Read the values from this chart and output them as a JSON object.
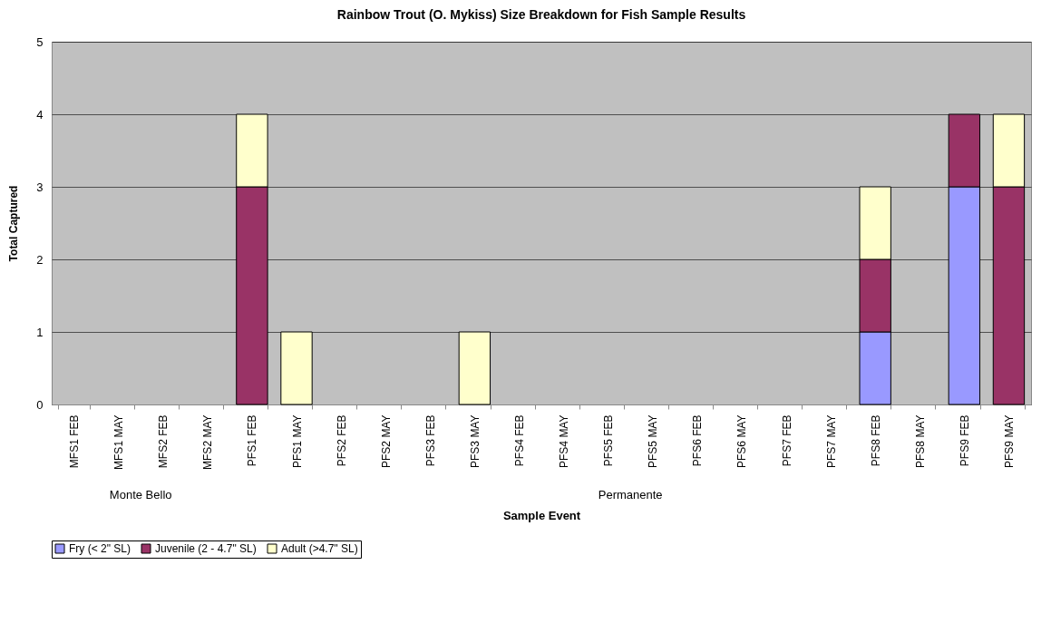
{
  "chart_data": {
    "type": "bar",
    "title": "Rainbow Trout (O. Mykiss) Size Breakdown for Fish Sample Results",
    "xlabel": "Sample Event",
    "ylabel": "Total Captured",
    "categories": [
      "MFS1 FEB",
      "MFS1 MAY",
      "MFS2 FEB",
      "MFS2 MAY",
      "PFS1 FEB",
      "PFS1 MAY",
      "PFS2 FEB",
      "PFS2 MAY",
      "PFS3 FEB",
      "PFS3 MAY",
      "PFS4 FEB",
      "PFS4 MAY",
      "PFS5 FEB",
      "PFS5 MAY",
      "PFS6 FEB",
      "PFS6 MAY",
      "PFS7 FEB",
      "PFS7 MAY",
      "PFS8 FEB",
      "PFS8 MAY",
      "PFS9 FEB",
      "PFS9 MAY"
    ],
    "series": [
      {
        "name": "Fry (< 2\" SL)",
        "color": "#9999ff",
        "values": [
          null,
          null,
          null,
          null,
          null,
          null,
          null,
          null,
          null,
          null,
          null,
          null,
          null,
          null,
          null,
          null,
          null,
          null,
          1,
          null,
          3,
          null
        ]
      },
      {
        "name": "Juvenile (2 - 4.7\" SL)",
        "color": "#993366",
        "values": [
          null,
          null,
          null,
          null,
          3,
          null,
          null,
          null,
          null,
          null,
          null,
          null,
          null,
          null,
          null,
          null,
          null,
          null,
          1,
          null,
          1,
          3
        ]
      },
      {
        "name": "Adult (>4.7\" SL)",
        "color": "#ffffcc",
        "values": [
          null,
          null,
          null,
          null,
          1,
          1,
          null,
          null,
          null,
          1,
          null,
          null,
          null,
          null,
          null,
          null,
          null,
          null,
          1,
          null,
          null,
          1
        ]
      }
    ],
    "stacked": true,
    "ylim": [
      0,
      5
    ],
    "yticks": [
      0,
      1,
      2,
      3,
      4,
      5
    ],
    "grid": "y",
    "legend": "bottom",
    "annotations": [
      "Monte Bello",
      "Permanente"
    ]
  }
}
